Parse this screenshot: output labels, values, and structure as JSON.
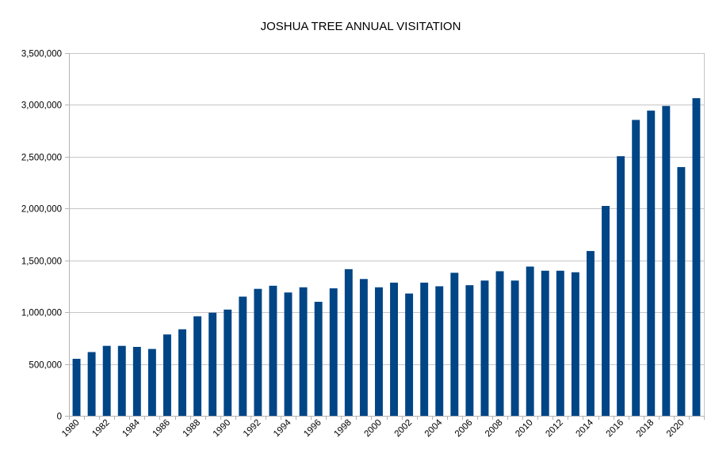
{
  "chart_data": {
    "type": "bar",
    "title": "JOSHUA TREE ANNUAL VISITATION",
    "xlabel": "",
    "ylabel": "",
    "ylim": [
      0,
      3500000
    ],
    "yticks": [
      0,
      500000,
      1000000,
      1500000,
      2000000,
      2500000,
      3000000,
      3500000
    ],
    "ytick_labels": [
      "0",
      "500,000",
      "1,000,000",
      "1,500,000",
      "2,000,000",
      "2,500,000",
      "3,000,000",
      "3,500,000"
    ],
    "grid": true,
    "bar_color": "#004586",
    "categories": [
      "1980",
      "1981",
      "1982",
      "1983",
      "1984",
      "1985",
      "1986",
      "1987",
      "1988",
      "1989",
      "1990",
      "1991",
      "1992",
      "1993",
      "1994",
      "1995",
      "1996",
      "1997",
      "1998",
      "1999",
      "2000",
      "2001",
      "2002",
      "2003",
      "2004",
      "2005",
      "2006",
      "2007",
      "2008",
      "2009",
      "2010",
      "2011",
      "2012",
      "2013",
      "2014",
      "2015",
      "2016",
      "2017",
      "2018",
      "2019",
      "2020",
      "2021"
    ],
    "xtick_labels": [
      "1980",
      "",
      "1982",
      "",
      "1984",
      "",
      "1986",
      "",
      "1988",
      "",
      "1990",
      "",
      "1992",
      "",
      "1994",
      "",
      "1996",
      "",
      "1998",
      "",
      "2000",
      "",
      "2002",
      "",
      "2004",
      "",
      "2006",
      "",
      "2008",
      "",
      "2010",
      "",
      "2012",
      "",
      "2014",
      "",
      "2016",
      "",
      "2018",
      "",
      "2020",
      ""
    ],
    "values": [
      550000,
      615000,
      675000,
      675000,
      665000,
      645000,
      785000,
      835000,
      960000,
      995000,
      1025000,
      1150000,
      1225000,
      1255000,
      1190000,
      1240000,
      1100000,
      1230000,
      1415000,
      1320000,
      1240000,
      1285000,
      1180000,
      1285000,
      1250000,
      1380000,
      1260000,
      1305000,
      1395000,
      1305000,
      1440000,
      1400000,
      1400000,
      1385000,
      1590000,
      2025000,
      2505000,
      2855000,
      2945000,
      2990000,
      2400000,
      3065000
    ]
  }
}
